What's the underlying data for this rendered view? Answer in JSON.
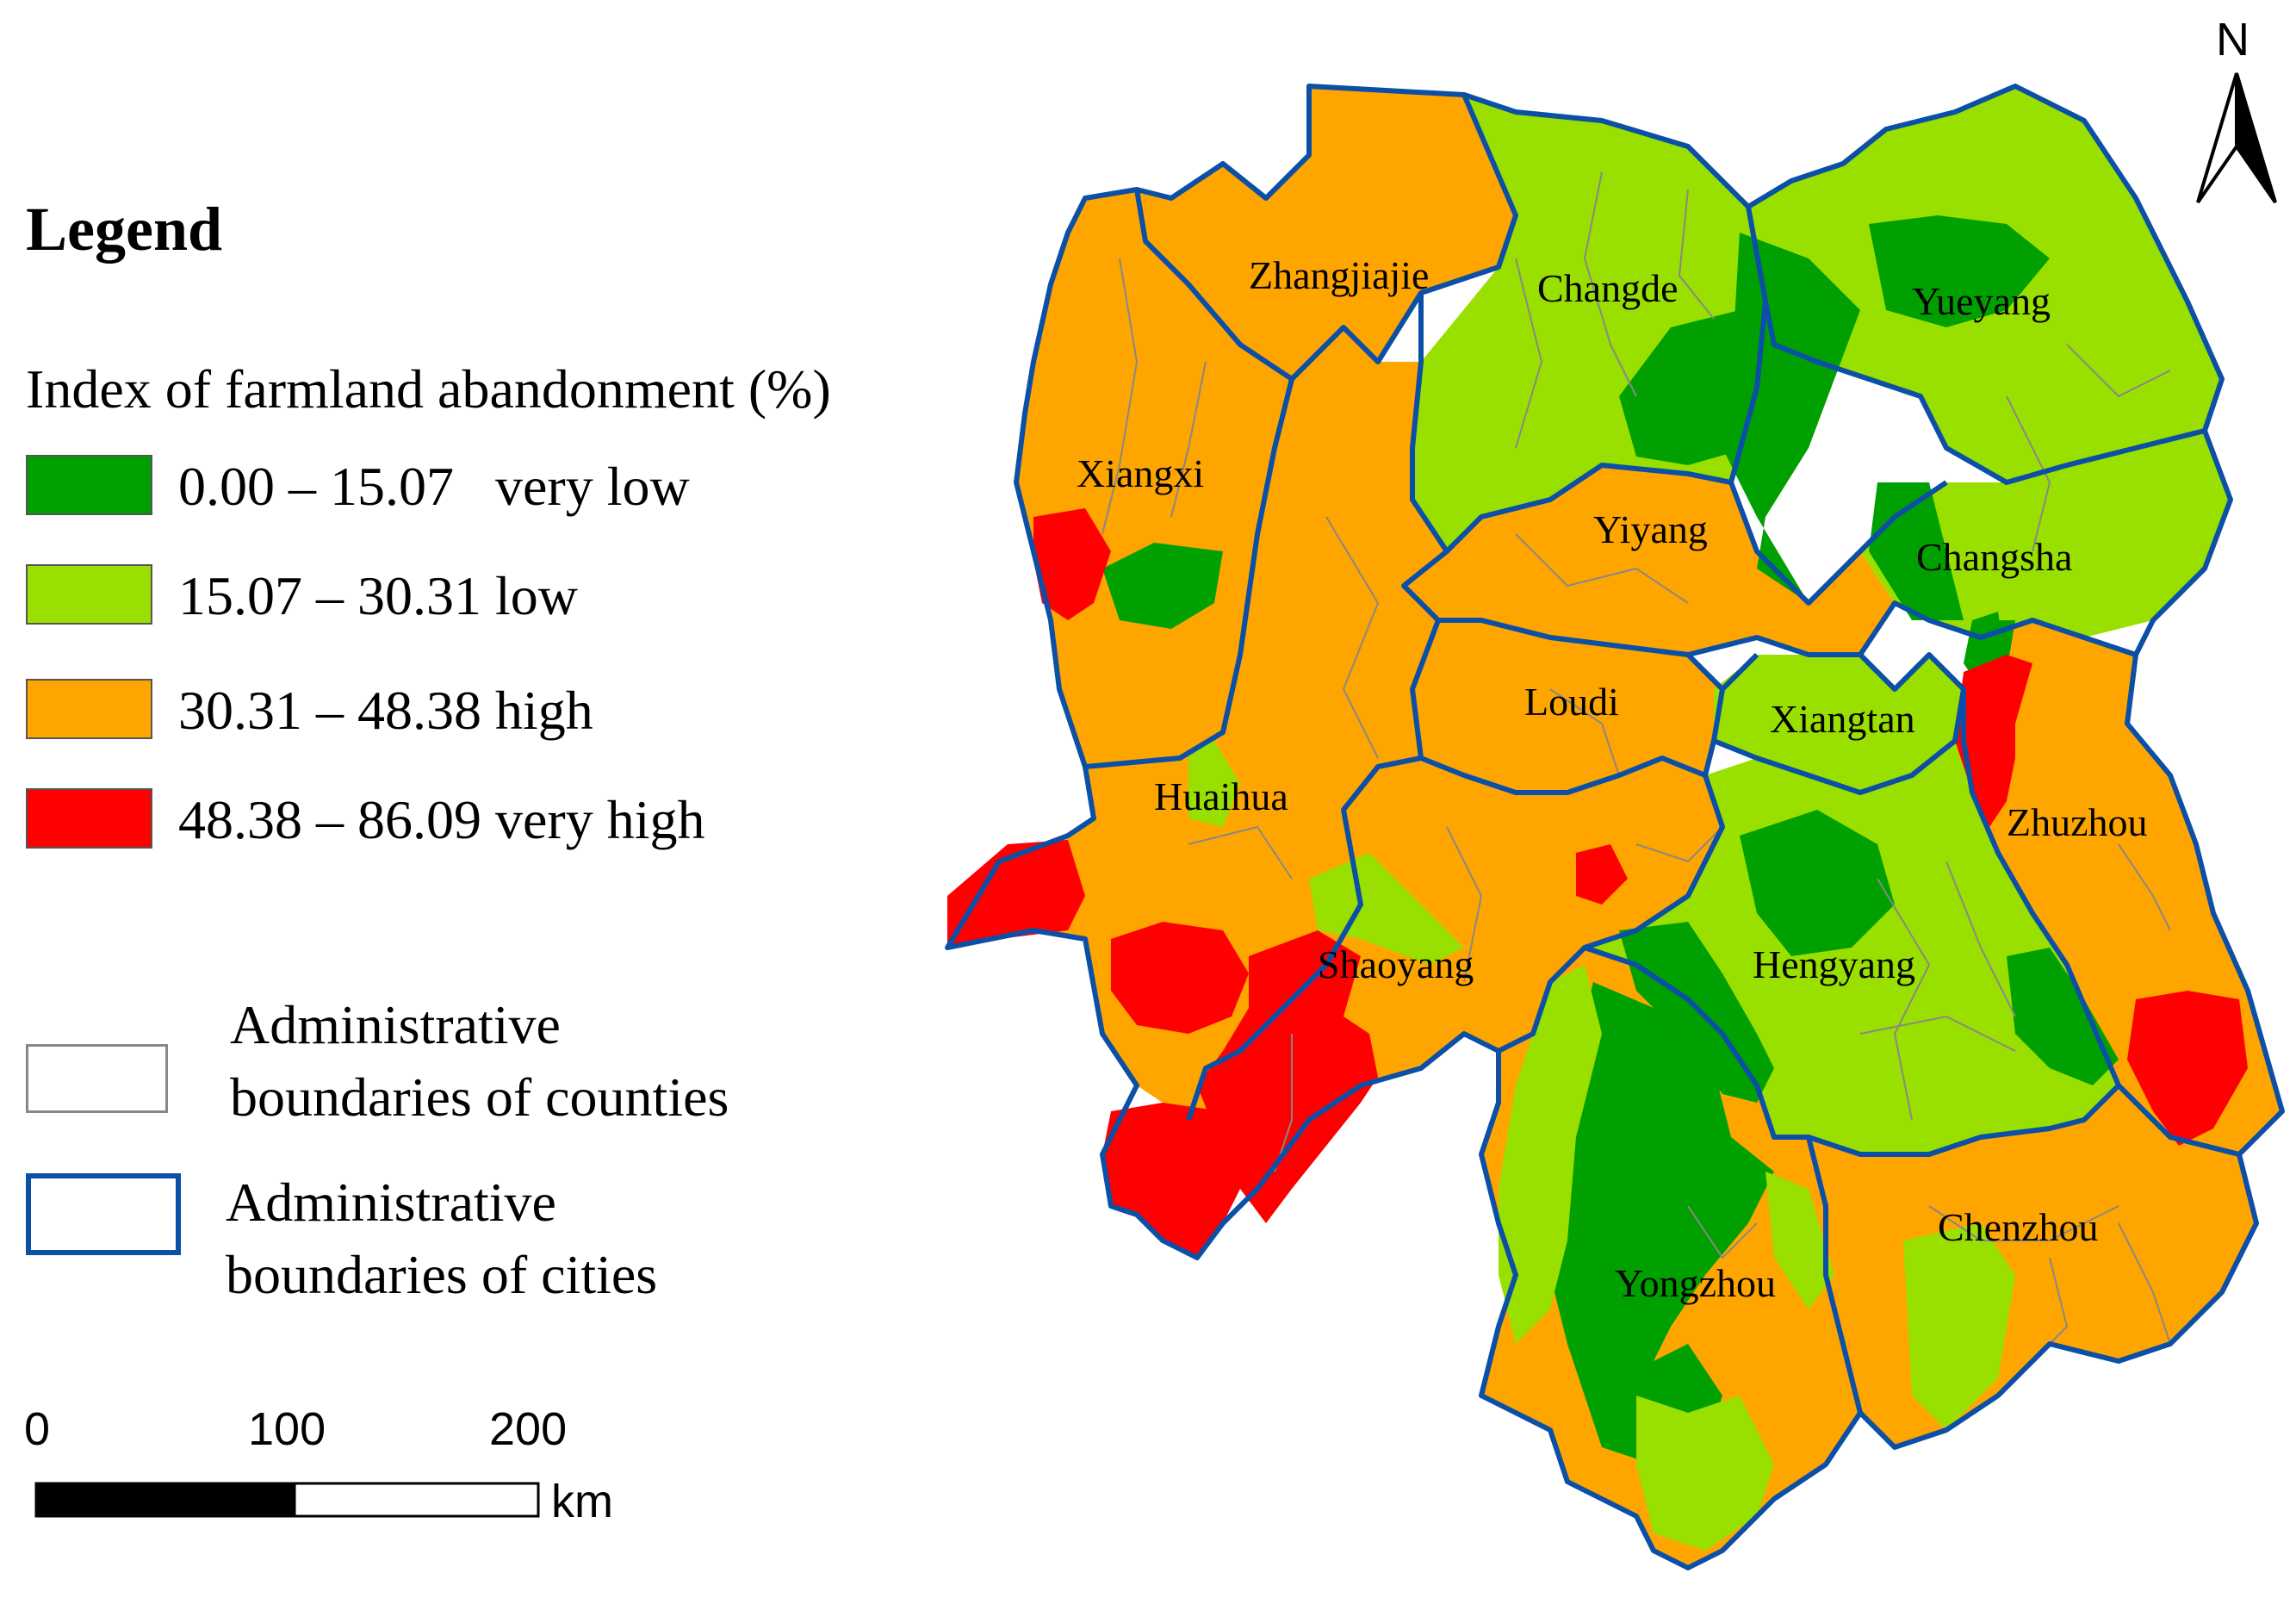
{
  "legend": {
    "title": "Legend",
    "subtitle": "Index of farmland abandonment (%)",
    "classes": [
      {
        "label": "0.00 – 15.07   very low",
        "color": "#00A000"
      },
      {
        "label": "15.07 – 30.31 low",
        "color": "#99E000"
      },
      {
        "label": "30.31 – 48.38 high",
        "color": "#FFA500"
      },
      {
        "label": "48.38 – 86.09 very high",
        "color": "#FF0000"
      }
    ],
    "county_boundary": {
      "line1": "Administrative",
      "line2": "boundaries of counties",
      "color": "#888888"
    },
    "city_boundary": {
      "line1": "Administrative",
      "line2": "boundaries of cities",
      "color": "#0B4FA6"
    }
  },
  "scale_bar": {
    "ticks": [
      "0",
      "100",
      "200"
    ],
    "unit": "km"
  },
  "north_arrow": {
    "letter": "N",
    "icon": "north-arrow-icon"
  },
  "cities": [
    {
      "name": "Zhangjiajie",
      "class": "high"
    },
    {
      "name": "Changde",
      "class": "low"
    },
    {
      "name": "Yueyang",
      "class": "low"
    },
    {
      "name": "Xiangxi",
      "class": "high"
    },
    {
      "name": "Yiyang",
      "class": "high"
    },
    {
      "name": "Changsha",
      "class": "low"
    },
    {
      "name": "Loudi",
      "class": "high"
    },
    {
      "name": "Xiangtan",
      "class": "low"
    },
    {
      "name": "Huaihua",
      "class": "high"
    },
    {
      "name": "Zhuzhou",
      "class": "high"
    },
    {
      "name": "Shaoyang",
      "class": "high"
    },
    {
      "name": "Hengyang",
      "class": "low"
    },
    {
      "name": "Chenzhou",
      "class": "high"
    },
    {
      "name": "Yongzhou",
      "class": "high"
    }
  ]
}
